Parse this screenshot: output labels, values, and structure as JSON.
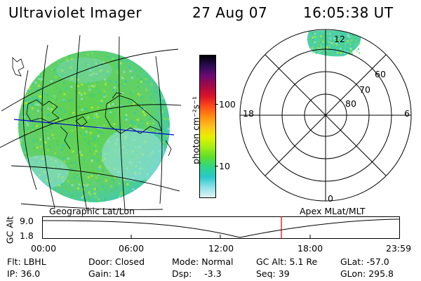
{
  "header": {
    "instrument": "Ultraviolet Imager",
    "date": "27 Aug 07",
    "time": "16:05:38 UT"
  },
  "colorbar": {
    "label": "photon cm⁻²s⁻¹",
    "ticks": [
      "100",
      "10"
    ],
    "stops": [
      "#000000",
      "#2a0b55",
      "#6b0a73",
      "#a40a45",
      "#d8122a",
      "#ff4a1a",
      "#ff8c10",
      "#ffc020",
      "#e7f000",
      "#a8ee16",
      "#5fde2a",
      "#2fd688",
      "#2ac8cc",
      "#8fe2e8",
      "#e0f2f3"
    ]
  },
  "polar": {
    "labels": {
      "top": "12",
      "bottom": "0",
      "left": "18",
      "right": "6"
    },
    "rings": [
      "60",
      "70",
      "80"
    ]
  },
  "panels": {
    "left_label": "Geographic Lat/Lon",
    "right_label": "Apex MLat/MLT"
  },
  "altplot": {
    "ylabel": "GC Alt",
    "yticks": [
      "9.0",
      "1.8"
    ],
    "xticks": [
      "00:00",
      "06:00",
      "12:00",
      "18:00",
      "23:59"
    ]
  },
  "info": {
    "row1": [
      {
        "label": "Flt:",
        "value": "LBHL"
      },
      {
        "label": "Door:",
        "value": "Closed"
      },
      {
        "label": "Mode:",
        "value": "Normal"
      },
      {
        "label": "GC Alt:",
        "value": "5.1 Re"
      },
      {
        "label": "GLat:",
        "value": "-57.0"
      }
    ],
    "row2": [
      {
        "label": "IP:",
        "value": "36.0"
      },
      {
        "label": "Gain:",
        "value": "14"
      },
      {
        "label": "Dsp:",
        "value": "-3.3"
      },
      {
        "label": "Seq:",
        "value": "39"
      },
      {
        "label": "GLon:",
        "value": "295.8"
      }
    ]
  }
}
